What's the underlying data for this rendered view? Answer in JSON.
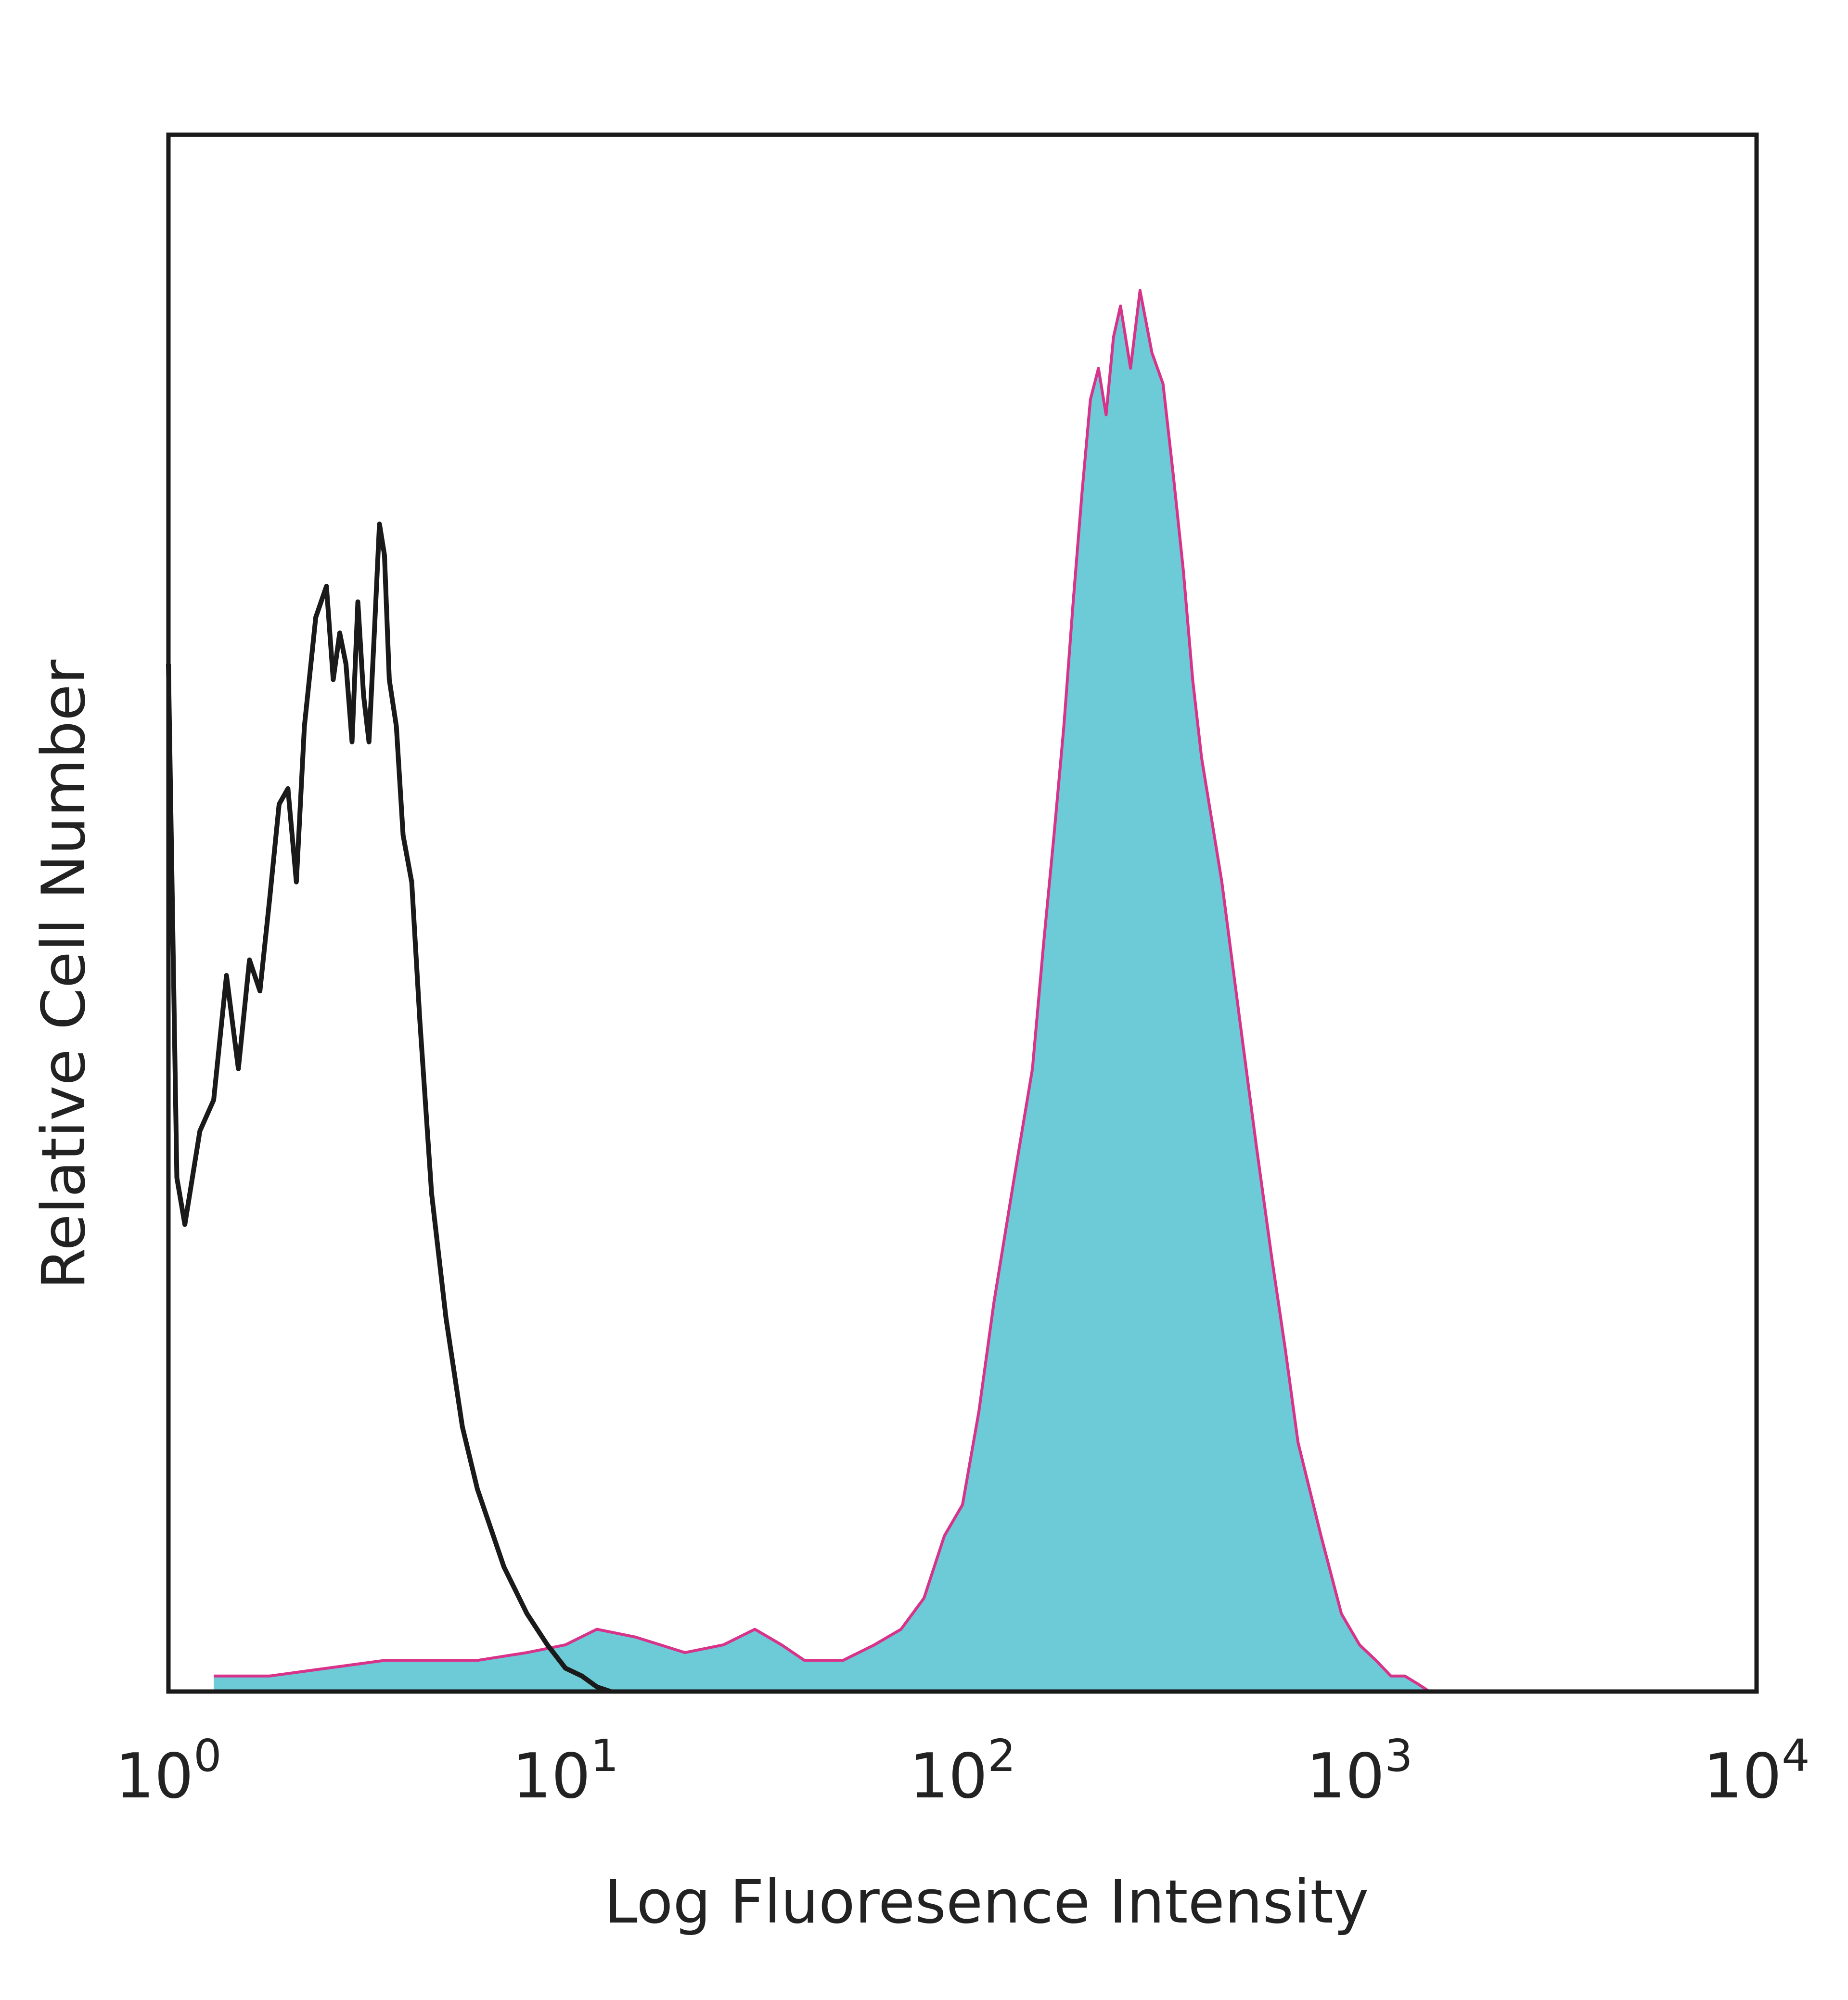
{
  "chart_data": {
    "type": "area",
    "xlabel": "Log Fluoresence Intensity",
    "ylabel": "Relative Cell Number",
    "x_scale": "log",
    "xlim": [
      1,
      10000
    ],
    "ylim": [
      0,
      100
    ],
    "grid": false,
    "x_ticks": [
      {
        "x": 1,
        "base": "10",
        "exp": "0"
      },
      {
        "x": 10,
        "base": "10",
        "exp": "1"
      },
      {
        "x": 100,
        "base": "10",
        "exp": "2"
      },
      {
        "x": 1000,
        "base": "10",
        "exp": "3"
      },
      {
        "x": 10000,
        "base": "10",
        "exp": "4"
      }
    ],
    "series": [
      {
        "style": "outline",
        "color": "#1a1a1a",
        "x": [
          1.0,
          1.05,
          1.1,
          1.2,
          1.3,
          1.4,
          1.5,
          1.6,
          1.7,
          1.8,
          1.9,
          2.0,
          2.1,
          2.2,
          2.35,
          2.5,
          2.6,
          2.7,
          2.8,
          2.9,
          3.0,
          3.1,
          3.2,
          3.3,
          3.4,
          3.5,
          3.6,
          3.75,
          3.9,
          4.1,
          4.3,
          4.6,
          5.0,
          5.5,
          6.0,
          7.0,
          8.0,
          9.0,
          10.0,
          11.0,
          12.0,
          13.0
        ],
        "y": [
          66,
          33,
          30,
          36,
          38,
          46,
          40,
          47,
          45,
          51,
          57,
          58,
          52,
          62,
          69,
          71,
          65,
          68,
          66,
          61,
          70,
          64,
          61,
          68,
          75,
          73,
          65,
          62,
          55,
          52,
          43,
          32,
          24,
          17,
          13,
          8,
          5,
          3,
          1.5,
          1,
          0.3,
          0
        ]
      },
      {
        "style": "filled",
        "color": "#6ccbd6",
        "outline_color": "#d8338b",
        "x": [
          1.3,
          1.8,
          3.5,
          4.5,
          6.0,
          8.0,
          10.0,
          12.0,
          15.0,
          20.0,
          25.0,
          30.0,
          35.0,
          40.0,
          50.0,
          60.0,
          70.0,
          80.0,
          90.0,
          100.0,
          110.0,
          120.0,
          135.0,
          150.0,
          160.0,
          170.0,
          180.0,
          190.0,
          200.0,
          210.0,
          220.0,
          230.0,
          240.0,
          250.0,
          265.0,
          280.0,
          300.0,
          320.0,
          340.0,
          360.0,
          380.0,
          400.0,
          450.0,
          500.0,
          550.0,
          600.0,
          650.0,
          700.0,
          800.0,
          900.0,
          1000.0,
          1100.0,
          1200.0,
          1300.0,
          1400.0,
          1500.0
        ],
        "y": [
          1,
          1,
          2,
          2,
          2,
          2.5,
          3,
          4,
          3.5,
          2.5,
          3,
          4,
          3,
          2,
          2,
          3,
          4,
          6,
          10,
          12,
          18,
          25,
          33,
          40,
          48,
          55,
          62,
          70,
          77,
          83,
          85,
          82,
          87,
          89,
          85,
          90,
          86,
          84,
          78,
          72,
          65,
          60,
          52,
          43,
          35,
          28,
          22,
          16,
          10,
          5,
          3,
          2,
          1,
          1,
          0.5,
          0
        ]
      }
    ]
  }
}
